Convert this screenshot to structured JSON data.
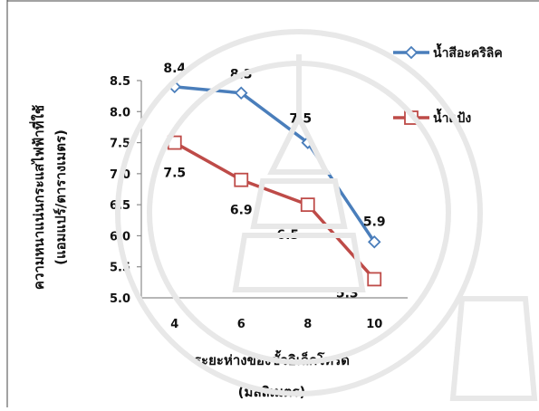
{
  "chart_data": {
    "type": "line",
    "x": [
      4,
      6,
      8,
      10
    ],
    "xlim": [
      3,
      11
    ],
    "ylim": [
      5.0,
      8.5
    ],
    "y_ticks": [
      "5.0",
      "5.5",
      "6.0",
      "6.5",
      "7.0",
      "7.5",
      "8.0",
      "8.5"
    ],
    "x_ticks": [
      "4",
      "6",
      "8",
      "10"
    ],
    "xlabel": [
      "ระยะห่างของขั้วอิเล็กโทรด",
      "(มิลลิเมตร)"
    ],
    "ylabel": [
      "ความหนาแน่นกระแสไฟฟ้าที่ใช้",
      "(แอมแปร์/ตารางเมตร)"
    ],
    "legend_position": "top-right",
    "grid": false,
    "series": [
      {
        "name": "น้ำสีอะคริลิค",
        "color": "#4a7ebb",
        "marker": "diamond",
        "values": [
          8.4,
          8.3,
          7.5,
          5.9
        ],
        "labels": [
          "8.4",
          "8.3",
          "7.5",
          "5.9"
        ]
      },
      {
        "name": "น้ำแป้ง",
        "color": "#be4b48",
        "marker": "square",
        "values": [
          7.5,
          6.9,
          6.5,
          5.3
        ],
        "labels": [
          "7.5",
          "6.9",
          "6.5",
          "5.3"
        ]
      }
    ]
  }
}
